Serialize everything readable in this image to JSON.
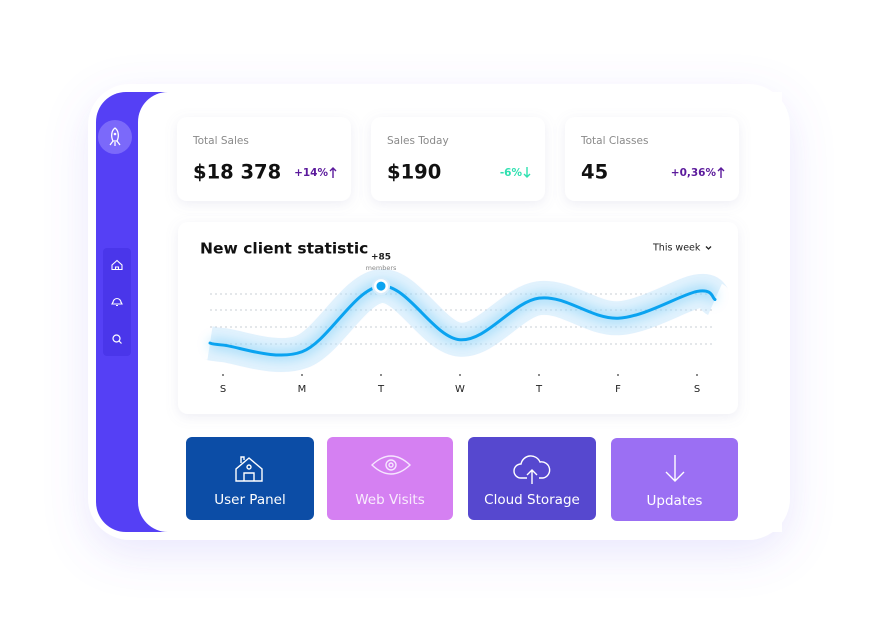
{
  "stats": [
    {
      "title": "Total Sales",
      "value": "$18 378",
      "change": "+14%",
      "trend": "up",
      "color": "#5b1a9c"
    },
    {
      "title": "Sales Today",
      "value": "$190",
      "change": "-6%",
      "trend": "down",
      "color": "#2fe0b0"
    },
    {
      "title": "Total Classes",
      "value": "45",
      "change": "+0,36%",
      "trend": "up",
      "color": "#5b1a9c"
    }
  ],
  "chart_data": {
    "type": "line",
    "title": "New client statistic",
    "period": "This week",
    "categories": [
      "S",
      "M",
      "T",
      "W",
      "T",
      "F",
      "S"
    ],
    "values": [
      41,
      36,
      85,
      45,
      76,
      61,
      81
    ],
    "ylim": [
      0,
      100
    ],
    "color": "#0aa3f0",
    "annotation": {
      "label": "+85",
      "text": "members"
    }
  },
  "tiles": [
    {
      "label": "User Panel",
      "color": "#0c4da6"
    },
    {
      "label": "Web Visits",
      "color": "#d580f2"
    },
    {
      "label": "Cloud Storage",
      "color": "#5648cf"
    },
    {
      "label": "Updates",
      "color": "#9b6ff3"
    }
  ]
}
